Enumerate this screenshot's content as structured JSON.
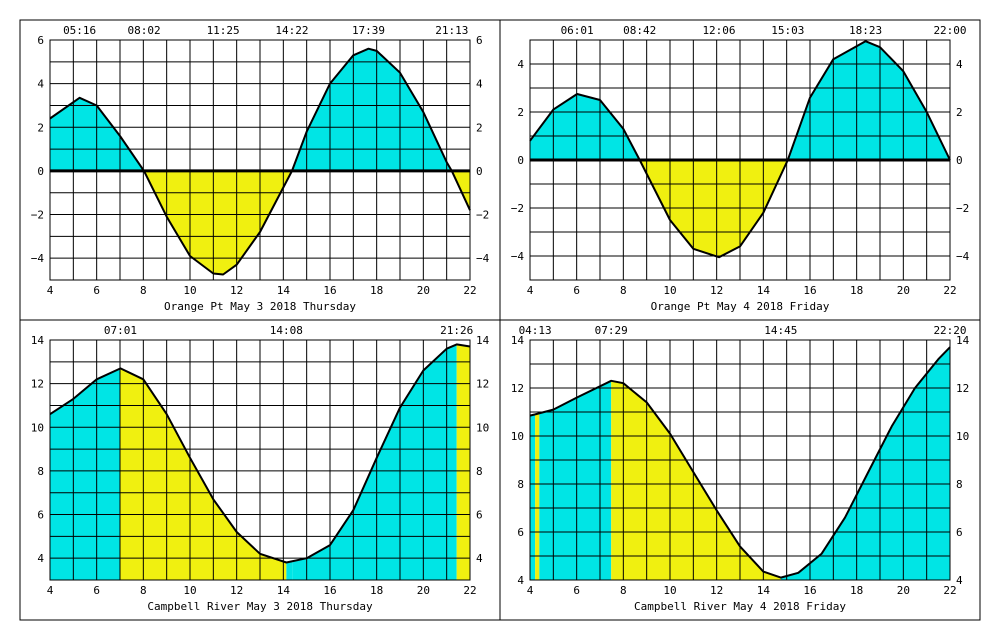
{
  "chart_data": [
    {
      "type": "area",
      "title": "Orange Pt May 3 2018 Thursday",
      "xlim": [
        4,
        22
      ],
      "ylim": [
        -5,
        6
      ],
      "xticks": [
        4,
        6,
        8,
        10,
        12,
        14,
        16,
        18,
        20,
        22
      ],
      "yticks": [
        -4,
        -2,
        0,
        2,
        4,
        6
      ],
      "ytick_labels": [
        "−4",
        "−2",
        "0",
        "2",
        "4",
        "6"
      ],
      "baseline": 0,
      "fill_mode": "sign",
      "top_labels": [
        {
          "x": 5.27,
          "text": "05:16"
        },
        {
          "x": 8.03,
          "text": "08:02"
        },
        {
          "x": 11.42,
          "text": "11:25"
        },
        {
          "x": 14.37,
          "text": "14:22"
        },
        {
          "x": 17.65,
          "text": "17:39"
        },
        {
          "x": 21.22,
          "text": "21:13"
        }
      ],
      "x": [
        4,
        5.27,
        6,
        7,
        8.03,
        9,
        10,
        11,
        11.42,
        12,
        13,
        14.37,
        15,
        16,
        17,
        17.65,
        18,
        19,
        20,
        21,
        21.22,
        22
      ],
      "y": [
        2.4,
        3.35,
        3.0,
        1.6,
        0.0,
        -2.1,
        -3.9,
        -4.7,
        -4.75,
        -4.3,
        -2.8,
        0.0,
        1.8,
        4.0,
        5.3,
        5.6,
        5.5,
        4.5,
        2.7,
        0.4,
        0.0,
        -1.8
      ]
    },
    {
      "type": "area",
      "title": "Orange Pt May 4 2018 Friday",
      "xlim": [
        4,
        22
      ],
      "ylim": [
        -5,
        5
      ],
      "xticks": [
        4,
        6,
        8,
        10,
        12,
        14,
        16,
        18,
        20,
        22
      ],
      "yticks": [
        -4,
        -2,
        0,
        2,
        4
      ],
      "ytick_labels": [
        "−4",
        "−2",
        "0",
        "2",
        "4"
      ],
      "baseline": 0,
      "fill_mode": "sign",
      "top_labels": [
        {
          "x": 6.02,
          "text": "06:01"
        },
        {
          "x": 8.7,
          "text": "08:42"
        },
        {
          "x": 12.1,
          "text": "12:06"
        },
        {
          "x": 15.05,
          "text": "15:03"
        },
        {
          "x": 18.38,
          "text": "18:23"
        },
        {
          "x": 22.0,
          "text": "22:00"
        }
      ],
      "x": [
        4,
        5,
        6.02,
        7,
        8,
        8.7,
        10,
        11,
        12.1,
        13,
        14,
        15.05,
        16,
        17,
        18.38,
        19,
        20,
        21,
        22
      ],
      "y": [
        0.8,
        2.1,
        2.75,
        2.5,
        1.3,
        0.0,
        -2.5,
        -3.7,
        -4.05,
        -3.6,
        -2.2,
        0.0,
        2.6,
        4.2,
        4.95,
        4.7,
        3.7,
        2.0,
        0.0
      ]
    },
    {
      "type": "area",
      "title": "Campbell River May 3 2018 Thursday",
      "xlim": [
        4,
        22
      ],
      "ylim": [
        3,
        14
      ],
      "xticks": [
        4,
        6,
        8,
        10,
        12,
        14,
        16,
        18,
        20,
        22
      ],
      "yticks": [
        4,
        6,
        8,
        10,
        12,
        14
      ],
      "ytick_labels": [
        "4",
        "6",
        "8",
        "10",
        "12",
        "14"
      ],
      "fill_mode": "bands",
      "bands": [
        {
          "from": 4,
          "to": 7.02,
          "color": "#00e5e5"
        },
        {
          "from": 7.02,
          "to": 14.13,
          "color": "#f0f010"
        },
        {
          "from": 14.13,
          "to": 14.4,
          "color": "#00e5e5"
        },
        {
          "from": 14.4,
          "to": 21.43,
          "color": "#00e5e5"
        },
        {
          "from": 21.43,
          "to": 22,
          "color": "#f0f010"
        }
      ],
      "top_labels": [
        {
          "x": 7.02,
          "text": "07:01"
        },
        {
          "x": 14.13,
          "text": "14:08"
        },
        {
          "x": 21.43,
          "text": "21:26"
        }
      ],
      "x": [
        4,
        5,
        6,
        7.02,
        8,
        9,
        10,
        11,
        12,
        13,
        14.13,
        15,
        16,
        17,
        18,
        19,
        20,
        21,
        21.43,
        22
      ],
      "y": [
        10.6,
        11.3,
        12.2,
        12.7,
        12.2,
        10.6,
        8.6,
        6.7,
        5.2,
        4.2,
        3.8,
        4.0,
        4.6,
        6.2,
        8.6,
        10.9,
        12.6,
        13.6,
        13.8,
        13.7
      ]
    },
    {
      "type": "area",
      "title": "Campbell River May 4 2018 Friday",
      "xlim": [
        4,
        22
      ],
      "ylim": [
        4,
        14
      ],
      "xticks": [
        4,
        6,
        8,
        10,
        12,
        14,
        16,
        18,
        20,
        22
      ],
      "yticks": [
        4,
        6,
        8,
        10,
        12,
        14
      ],
      "ytick_labels": [
        "4",
        "6",
        "8",
        "10",
        "12",
        "14"
      ],
      "fill_mode": "bands",
      "bands": [
        {
          "from": 4,
          "to": 4.22,
          "color": "#00e5e5"
        },
        {
          "from": 4.22,
          "to": 4.4,
          "color": "#f0f010"
        },
        {
          "from": 4.4,
          "to": 7.48,
          "color": "#00e5e5"
        },
        {
          "from": 7.48,
          "to": 14.75,
          "color": "#f0f010"
        },
        {
          "from": 14.75,
          "to": 22,
          "color": "#00e5e5"
        }
      ],
      "top_labels": [
        {
          "x": 4.22,
          "text": "04:13"
        },
        {
          "x": 7.48,
          "text": "07:29"
        },
        {
          "x": 14.75,
          "text": "14:45"
        },
        {
          "x": 22.0,
          "text": "22:20"
        }
      ],
      "x": [
        4,
        4.22,
        5,
        6,
        7.48,
        8,
        9,
        10,
        11,
        12,
        13,
        14,
        14.75,
        15.5,
        16.5,
        17.5,
        18.5,
        19.5,
        20.5,
        21.5,
        22
      ],
      "y": [
        10.85,
        10.9,
        11.1,
        11.6,
        12.3,
        12.2,
        11.4,
        10.1,
        8.5,
        6.9,
        5.4,
        4.35,
        4.1,
        4.3,
        5.1,
        6.6,
        8.5,
        10.4,
        12.0,
        13.2,
        13.7
      ]
    }
  ]
}
